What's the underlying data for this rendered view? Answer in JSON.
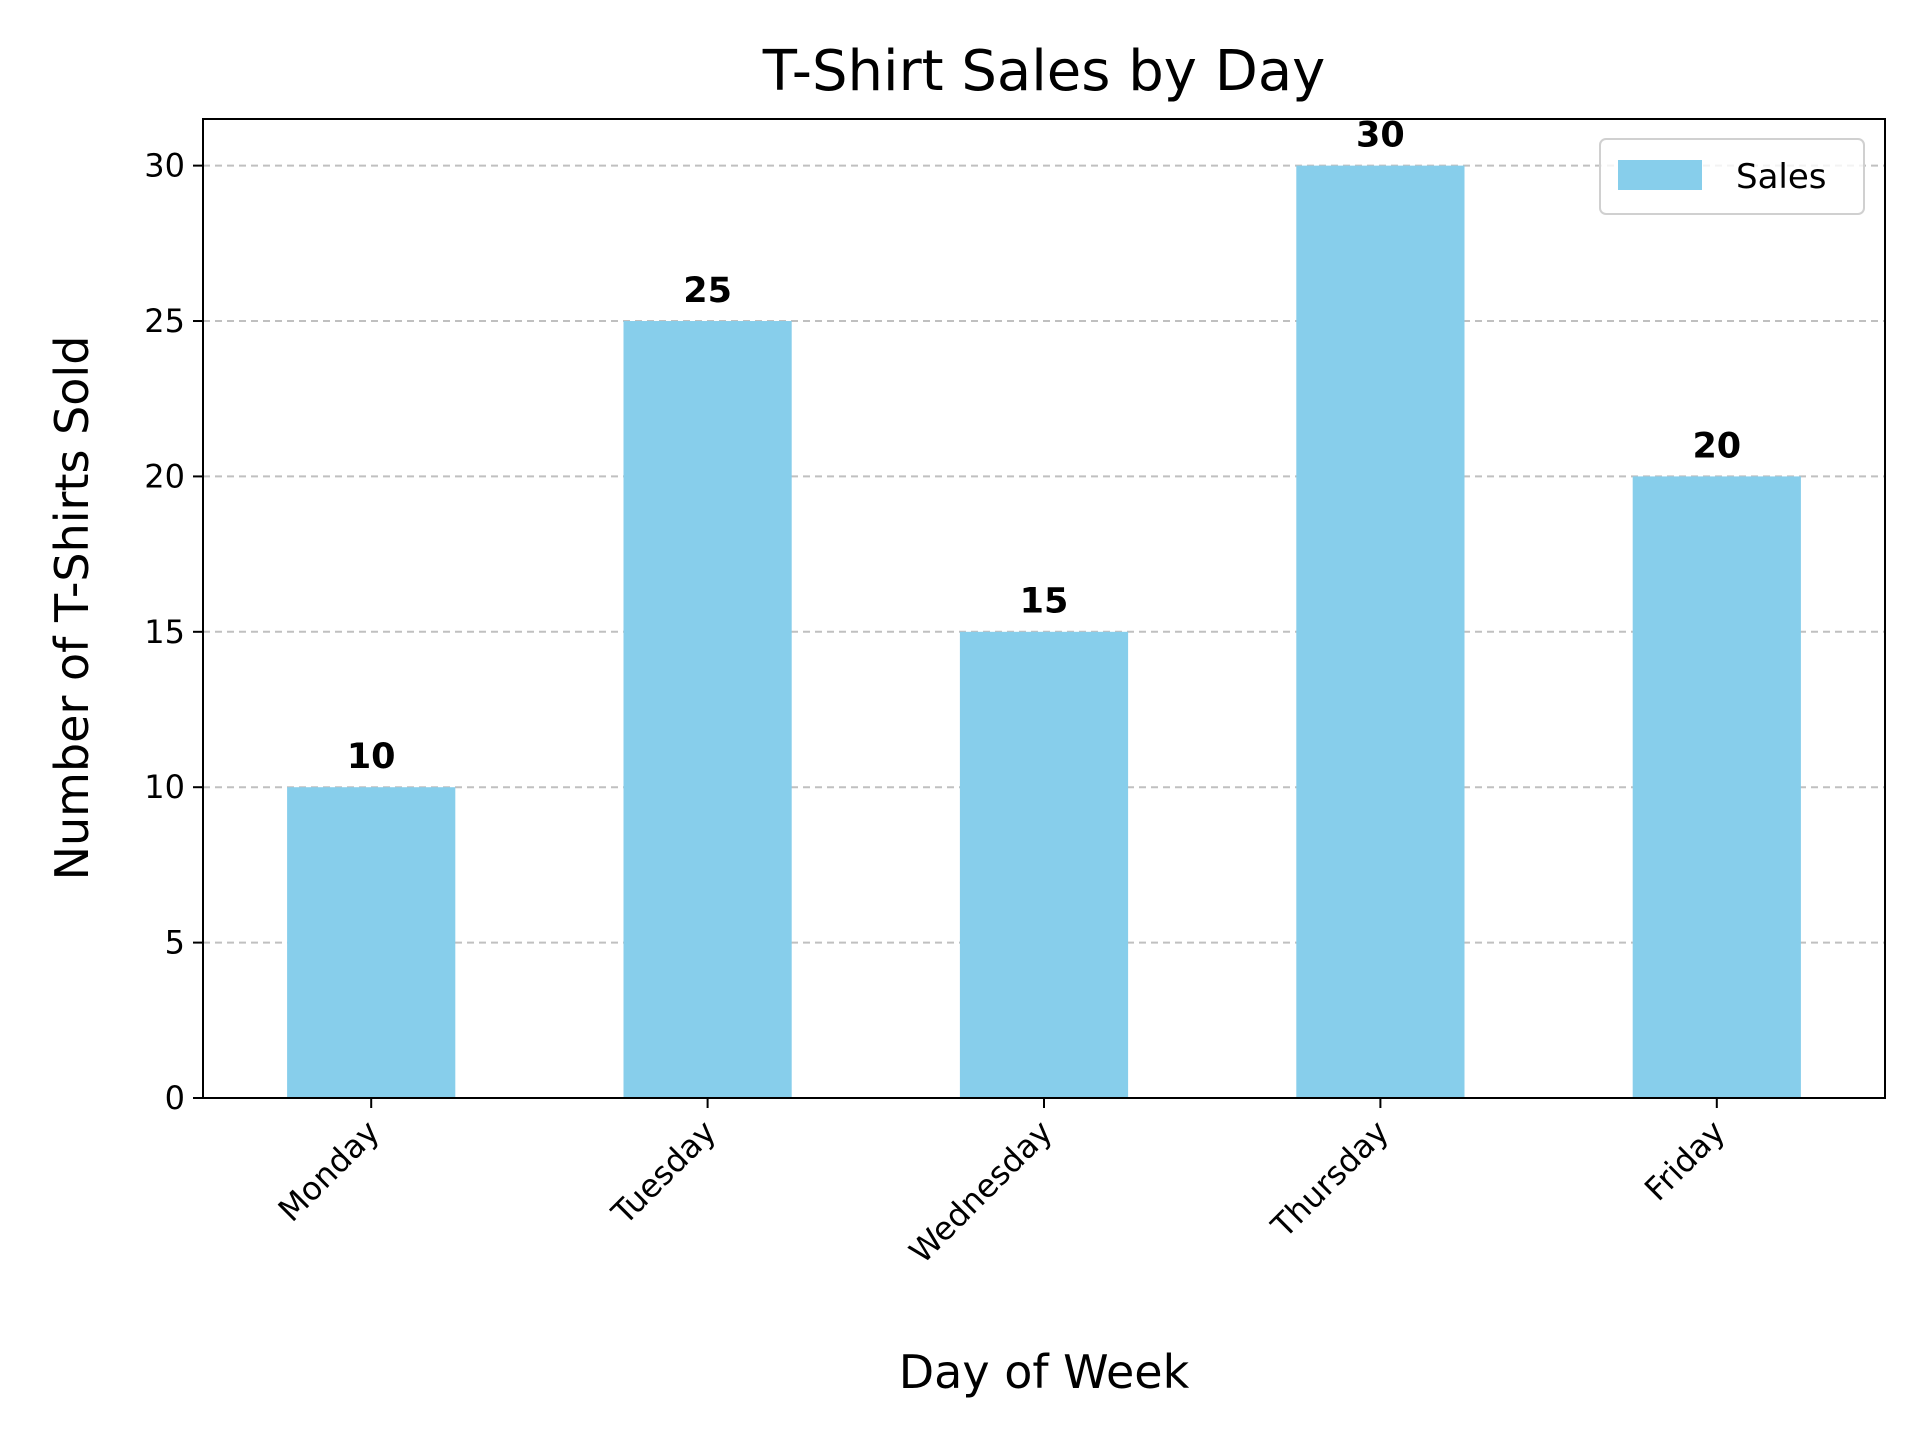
{
  "chart_data": {
    "type": "bar",
    "title": "T-Shirt Sales by Day",
    "xlabel": "Day of Week",
    "ylabel": "Number of T-Shirts Sold",
    "categories": [
      "Monday",
      "Tuesday",
      "Wednesday",
      "Thursday",
      "Friday"
    ],
    "series": [
      {
        "name": "Sales",
        "values": [
          10,
          25,
          15,
          30,
          20
        ],
        "color": "#87CEEB"
      }
    ],
    "data_labels": [
      "10",
      "25",
      "15",
      "30",
      "20"
    ],
    "ylim": [
      0,
      31.5
    ],
    "yticks": [
      0,
      5,
      10,
      15,
      20,
      25,
      30
    ],
    "ytick_labels": [
      "0",
      "5",
      "10",
      "15",
      "20",
      "25",
      "30"
    ],
    "grid": {
      "axis": "y",
      "style": "dashed",
      "color": "#c0c0c0"
    },
    "legend": {
      "position": "top-right"
    },
    "xtick_rotation": 45
  }
}
